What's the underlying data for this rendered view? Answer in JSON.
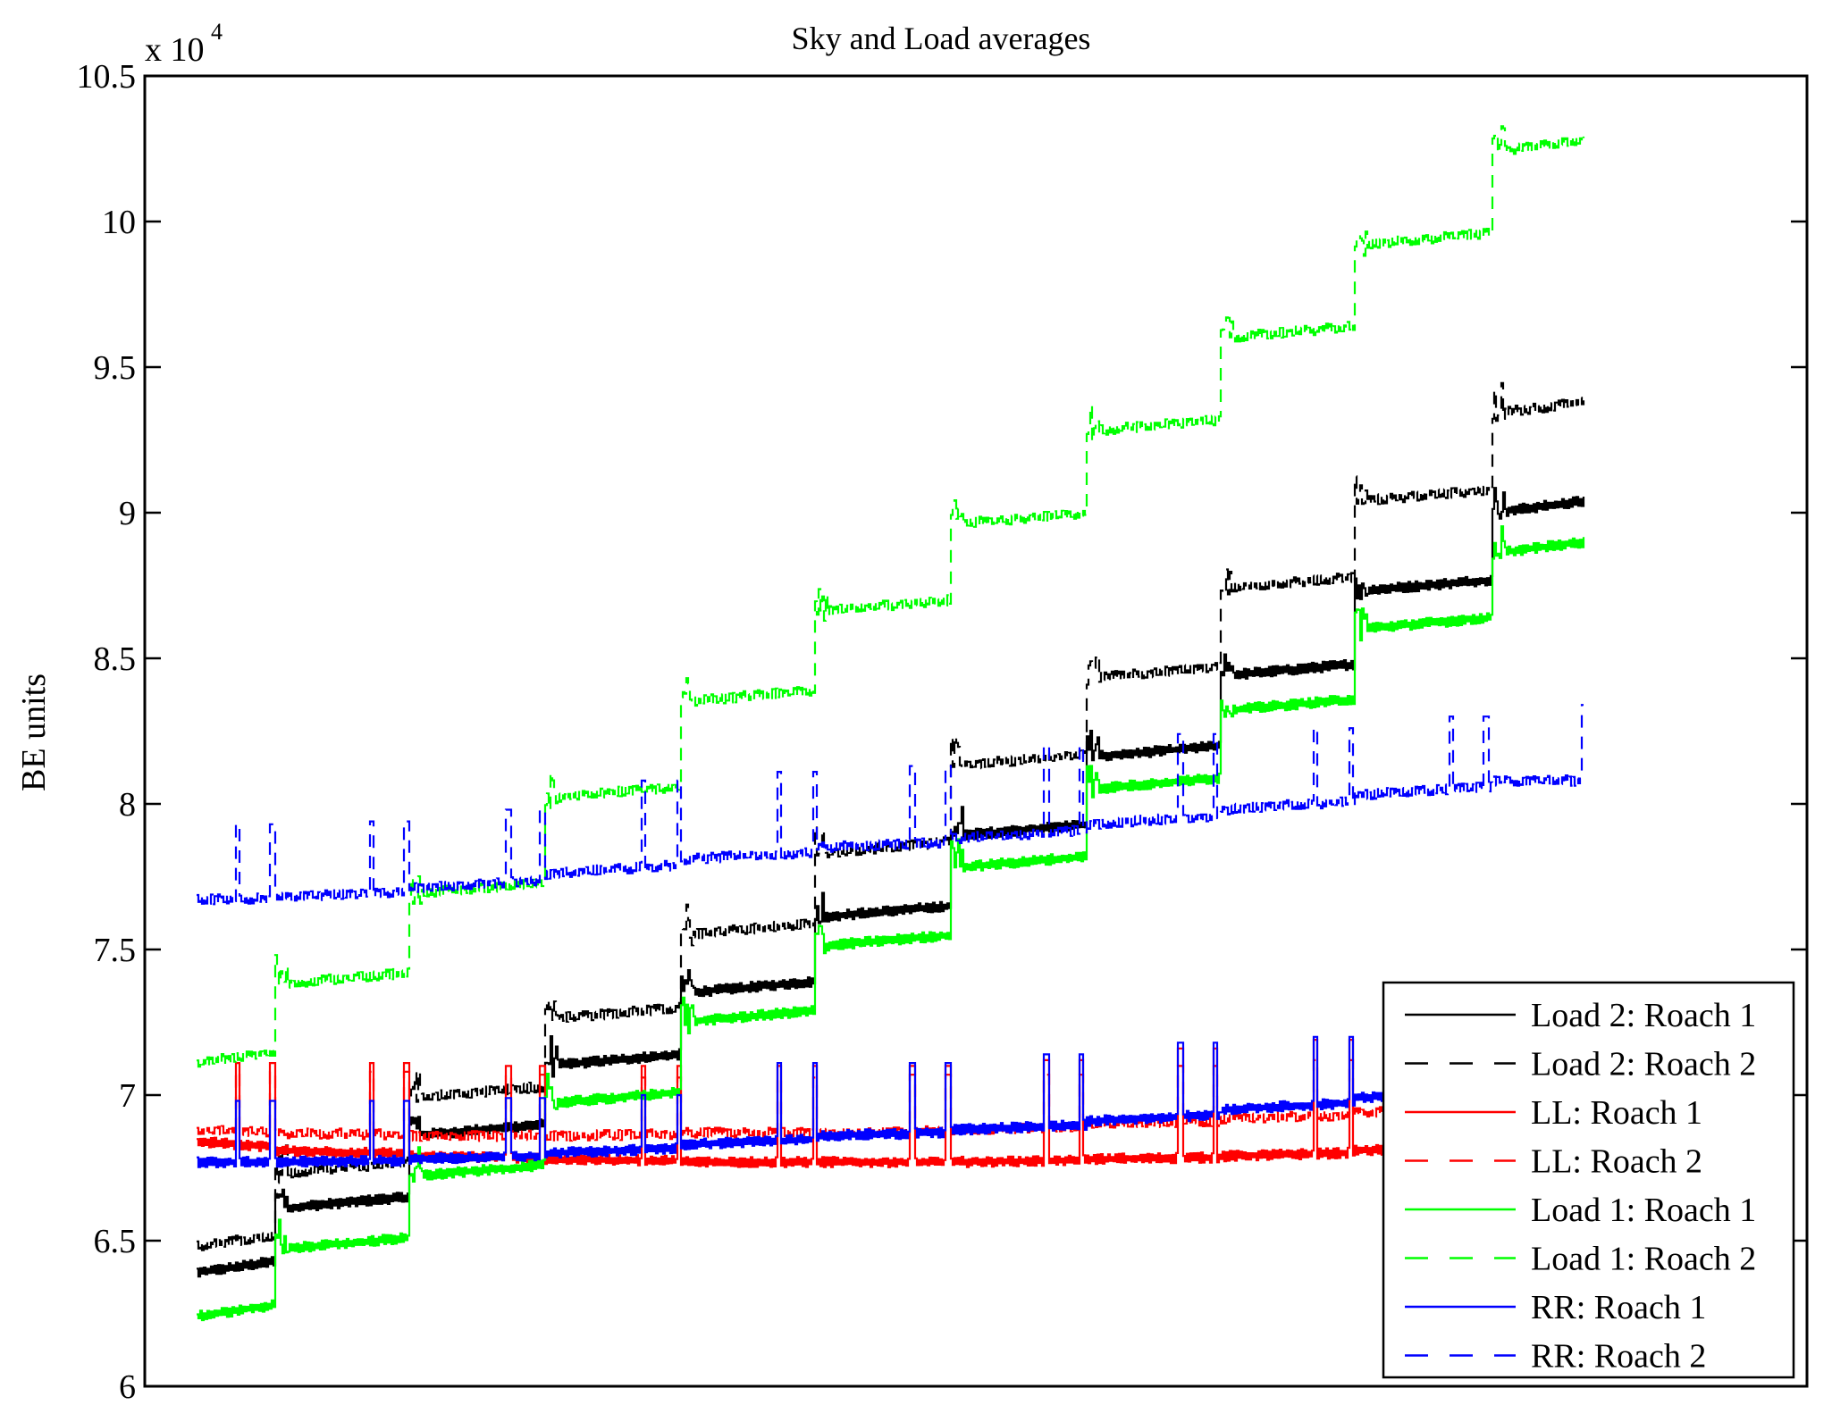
{
  "chart_data": {
    "type": "line",
    "title": "Sky and Load averages",
    "xlabel": "",
    "ylabel": "BE units",
    "y_multiplier_label": "x 10",
    "y_multiplier_exponent": "4",
    "y_scale_factor": 10000,
    "ylim": [
      6.0,
      10.5
    ],
    "yticks": [
      6,
      6.5,
      7,
      7.5,
      8,
      8.5,
      9,
      9.5,
      10,
      10.5
    ],
    "ytick_labels": [
      "6",
      "6.5",
      "7",
      "7.5",
      "8",
      "8.5",
      "9",
      "9.5",
      "10",
      "10.5"
    ],
    "xlim": [
      -58,
      1802
    ],
    "xticks": [],
    "grid": false,
    "legend_position": "bottom-right",
    "x_sample_range": [
      0,
      1552
    ],
    "segment_boundaries": [
      0,
      88,
      237,
      389,
      541,
      691,
      844,
      996,
      1146,
      1296,
      1449,
      1552
    ],
    "spike_positions": [
      43,
      82,
      193,
      232,
      346,
      384,
      497,
      537,
      649,
      689,
      798,
      838,
      948,
      987,
      1098,
      1137,
      1249,
      1289,
      1401,
      1440,
      1550
    ],
    "series": [
      {
        "name": "Load 2: Roach 1",
        "color": "#000000",
        "dash": "solid",
        "segment_levels": [
          6.41,
          6.63,
          6.88,
          7.12,
          7.37,
          7.63,
          7.91,
          8.18,
          8.46,
          8.75,
          9.02
        ],
        "spike_level": null
      },
      {
        "name": "Load 2: Roach 2",
        "color": "#000000",
        "dash": "dashed",
        "segment_levels": [
          6.5,
          6.75,
          7.01,
          7.28,
          7.57,
          7.85,
          8.15,
          8.45,
          8.76,
          9.06,
          9.36
        ],
        "spike_level": null
      },
      {
        "name": "LL: Roach 1",
        "color": "#ff0000",
        "dash": "solid",
        "segment_levels": [
          6.84,
          6.81,
          6.79,
          6.78,
          6.77,
          6.77,
          6.77,
          6.78,
          6.79,
          6.81,
          6.82
        ],
        "spike_level": [
          7.11,
          7.11,
          7.1,
          7.1,
          7.1,
          7.1,
          7.12,
          7.16,
          7.19,
          7.22,
          7.24
        ]
      },
      {
        "name": "LL: Roach 2",
        "color": "#ff0000",
        "dash": "dashed",
        "segment_levels": [
          6.88,
          6.87,
          6.86,
          6.86,
          6.87,
          6.87,
          6.88,
          6.9,
          6.92,
          6.94,
          6.96
        ],
        "spike_level": [
          7.08,
          7.08,
          7.07,
          7.06,
          7.06,
          7.07,
          7.07,
          7.1,
          7.12,
          7.16,
          7.18
        ]
      },
      {
        "name": "Load 1: Roach 1",
        "color": "#00ff00",
        "dash": "solid",
        "segment_levels": [
          6.26,
          6.49,
          6.74,
          6.99,
          7.27,
          7.53,
          7.8,
          8.07,
          8.34,
          8.62,
          8.88
        ],
        "spike_level": null
      },
      {
        "name": "Load 1: Roach 2",
        "color": "#00ff00",
        "dash": "dashed",
        "segment_levels": [
          7.13,
          7.4,
          7.71,
          8.04,
          8.37,
          8.68,
          8.98,
          9.3,
          9.62,
          9.94,
          10.26
        ],
        "spike_level": null
      },
      {
        "name": "RR: Roach 1",
        "color": "#0000ff",
        "dash": "solid",
        "segment_levels": [
          6.77,
          6.77,
          6.78,
          6.8,
          6.83,
          6.86,
          6.88,
          6.91,
          6.95,
          6.99,
          7.03
        ],
        "spike_level": [
          6.98,
          6.98,
          6.99,
          7.0,
          7.11,
          7.11,
          7.14,
          7.18,
          7.2,
          7.23,
          7.24
        ]
      },
      {
        "name": "RR: Roach 2",
        "color": "#0000ff",
        "dash": "dashed",
        "segment_levels": [
          7.67,
          7.68,
          7.71,
          7.76,
          7.81,
          7.85,
          7.88,
          7.93,
          7.98,
          8.03,
          8.08
        ],
        "spike_level": [
          7.93,
          7.94,
          7.98,
          8.08,
          8.11,
          8.13,
          8.2,
          8.24,
          8.26,
          8.3,
          8.34
        ]
      }
    ]
  }
}
